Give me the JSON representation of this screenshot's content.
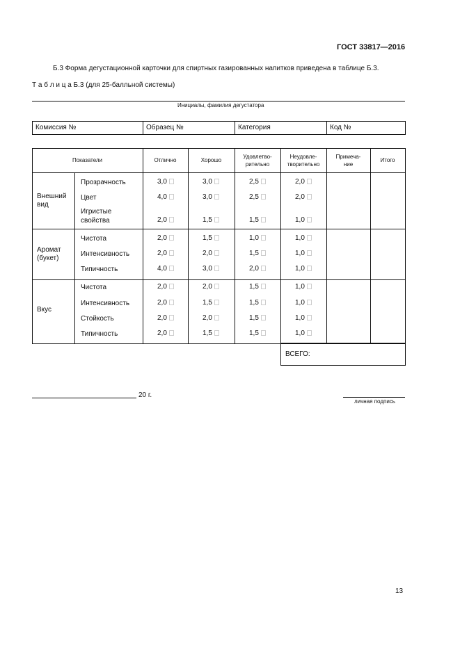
{
  "header": {
    "standard": "ГОСТ 33817—2016"
  },
  "intro": "Б.3 Форма дегустационной карточки для спиртных газированных напитков приведена в таблице Б.3.",
  "table_caption": {
    "label": "Т а б л и ц а  Б.3",
    "note": "(для 25-балльной системы)"
  },
  "taster_caption": "Инициалы, фамилия дегустатора",
  "form_fields": [
    "Комиссия №",
    "Образец №",
    "Категория",
    "Код №"
  ],
  "columns": [
    "Показатели",
    "Отлично",
    "Хорошо",
    "Удовлетво-\nрительно",
    "Неудовле-\nтворительно",
    "Примеча-\nние",
    "Итого"
  ],
  "groups": [
    {
      "name": "Внешний вид",
      "rows": [
        {
          "label": "Прозрачность",
          "values": [
            "3,0",
            "3,0",
            "2,5",
            "2,0"
          ]
        },
        {
          "label": "Цвет",
          "values": [
            "4,0",
            "3,0",
            "2,5",
            "2,0"
          ]
        },
        {
          "label": "Игристые свойства",
          "values": [
            "2,0",
            "1,5",
            "1,5",
            "1,0"
          ]
        }
      ]
    },
    {
      "name": "Аромат (букет)",
      "rows": [
        {
          "label": "Чистота",
          "values": [
            "2,0",
            "1,5",
            "1,0",
            "1,0"
          ]
        },
        {
          "label": "Интенсивность",
          "values": [
            "2,0",
            "2,0",
            "1,5",
            "1,0"
          ]
        },
        {
          "label": "Типичность",
          "values": [
            "4,0",
            "3,0",
            "2,0",
            "1,0"
          ]
        }
      ]
    },
    {
      "name": "Вкус",
      "rows": [
        {
          "label": "Чистота",
          "values": [
            "2,0",
            "2,0",
            "1,5",
            "1,0"
          ]
        },
        {
          "label": "Интенсивность",
          "values": [
            "2,0",
            "1,5",
            "1,5",
            "1,0"
          ]
        },
        {
          "label": "Стойкость",
          "values": [
            "2,0",
            "2,0",
            "1,5",
            "1,0"
          ]
        },
        {
          "label": "Типичность",
          "values": [
            "2,0",
            "1,5",
            "1,5",
            "1,0"
          ]
        }
      ]
    }
  ],
  "total_label": "ВСЕГО:",
  "date_suffix": "20 г.",
  "signature_caption": "личная подпись",
  "page_number": "13"
}
